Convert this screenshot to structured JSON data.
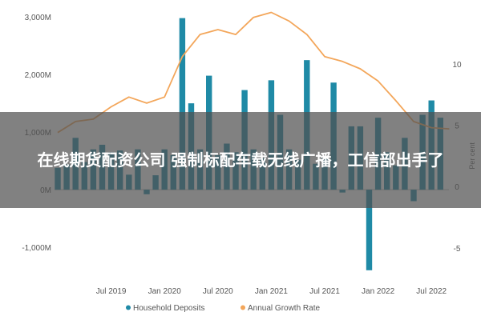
{
  "headline": "在线期货配资公司 强制标配车载无线广播，工信部出手了",
  "chart_data": {
    "type": "bar",
    "colors": {
      "bars": "#1f8aa6",
      "line": "#f3a65a",
      "zero": "#bbbbbb"
    },
    "left_axis": {
      "ticks": [
        -1000,
        0,
        1000,
        2000,
        3000
      ],
      "labels": [
        "-1,000M",
        "0M",
        "1,000M",
        "2,000M",
        "3,000M"
      ],
      "ylim": [
        -1500,
        3100
      ]
    },
    "right_axis": {
      "title": "Per cent",
      "ticks": [
        -5,
        0,
        5,
        10
      ],
      "labels": [
        "-5",
        "0",
        "5",
        "10"
      ],
      "ylim": [
        -7.3,
        14.3
      ]
    },
    "x_tick_labels": [
      "Jul 2019",
      "Jan 2020",
      "Jul 2020",
      "Jan 2021",
      "Jul 2021",
      "Jan 2022",
      "Jul 2022"
    ],
    "x_tick_months": [
      6,
      12,
      18,
      24,
      30,
      36,
      42
    ],
    "series": [
      {
        "name": "Household Deposits",
        "kind": "bar",
        "axis": "left",
        "months": [
          0,
          1,
          2,
          3,
          4,
          5,
          6,
          7,
          8,
          9,
          10,
          11,
          12,
          13,
          14,
          15,
          16,
          17,
          18,
          19,
          20,
          21,
          22,
          23,
          24,
          25,
          26,
          27,
          28,
          29,
          30,
          31,
          32,
          33,
          34,
          35,
          36,
          37,
          38,
          39,
          40,
          41,
          42,
          43
        ],
        "values": [
          380,
          440,
          900,
          480,
          700,
          780,
          650,
          680,
          260,
          700,
          -80,
          250,
          700,
          600,
          2980,
          1500,
          700,
          1980,
          600,
          800,
          650,
          1730,
          700,
          550,
          1900,
          1300,
          700,
          520,
          2250,
          450,
          550,
          1860,
          -50,
          1100,
          1100,
          -1400,
          1250,
          650,
          420,
          900,
          -200,
          1300,
          1550,
          1250
        ]
      },
      {
        "name": "Annual Growth Rate",
        "kind": "line",
        "axis": "right",
        "months": [
          0,
          2,
          4,
          6,
          8,
          10,
          12,
          14,
          16,
          18,
          20,
          22,
          24,
          26,
          28,
          30,
          32,
          34,
          36,
          38,
          40,
          42,
          44
        ],
        "values": [
          4.4,
          5.3,
          5.5,
          6.5,
          7.3,
          6.8,
          7.3,
          10.6,
          12.4,
          12.8,
          12.4,
          13.8,
          14.2,
          13.5,
          12.4,
          10.6,
          10.2,
          9.6,
          8.6,
          7.0,
          5.3,
          4.8,
          4.7
        ]
      }
    ]
  }
}
